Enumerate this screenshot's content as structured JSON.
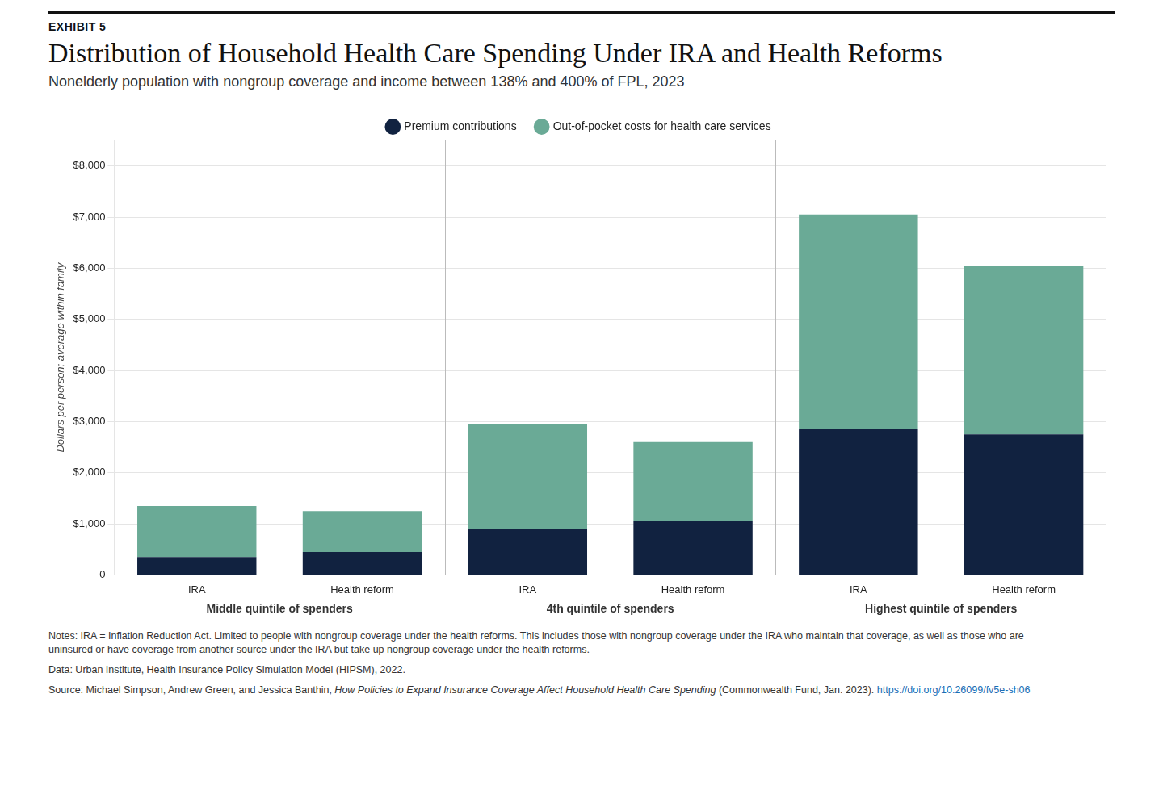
{
  "chart_data": {
    "type": "bar",
    "stacked": true,
    "exhibit": "EXHIBIT 5",
    "title": "Distribution of Household Health Care Spending Under IRA and Health Reforms",
    "subtitle": "Nonelderly population with nongroup coverage and income between 138% and 400% of FPL, 2023",
    "ylabel": "Dollars per person; average within family",
    "categories": [
      "IRA",
      "Health reform",
      "IRA",
      "Health reform",
      "IRA",
      "Health reform"
    ],
    "groups": [
      "Middle quintile of spenders",
      "4th quintile of spenders",
      "Highest quintile of spenders"
    ],
    "series": [
      {
        "name": "Premium contributions",
        "color": "#112240",
        "values": [
          350,
          450,
          900,
          1050,
          2850,
          2750
        ]
      },
      {
        "name": "Out-of-pocket costs for health care services",
        "color": "#6aaa96",
        "values": [
          1000,
          800,
          2050,
          1550,
          4200,
          3300
        ]
      }
    ],
    "ylim": [
      0,
      8500
    ],
    "yticks": [
      0,
      {
        "value": 1000,
        "label": "$1,000"
      },
      {
        "value": 2000,
        "label": "$2,000"
      },
      {
        "value": 3000,
        "label": "$3,000"
      },
      {
        "value": 4000,
        "label": "$4,000"
      },
      {
        "value": 5000,
        "label": "$5,000"
      },
      {
        "value": 6000,
        "label": "$6,000"
      },
      {
        "value": 7000,
        "label": "$7,000"
      },
      {
        "value": 8000,
        "label": "$8,000"
      }
    ],
    "grid": true,
    "legend": "top",
    "notes": [
      "Notes: IRA = Inflation Reduction Act. Limited to people with nongroup coverage under the health reforms. This includes those with nongroup coverage under the IRA who maintain that coverage, as well as those who are",
      "uninsured or have coverage from another source under the IRA but take up nongroup coverage under the health reforms."
    ],
    "data_note": "Data: Urban Institute, Health Insurance Policy Simulation Model (HIPSM), 2022.",
    "source_text": "Source: Michael Simpson, Andrew Green, and Jessica Banthin, ",
    "source_italic": "How Policies to Expand Insurance Coverage Affect Household Health Care Spending",
    "source_end": " (Commonwealth Fund, Jan. 2023). ",
    "source_url": "https://doi.org/10.26099/fv5e-sh06",
    "source_url_color": "#1a6eb5"
  }
}
